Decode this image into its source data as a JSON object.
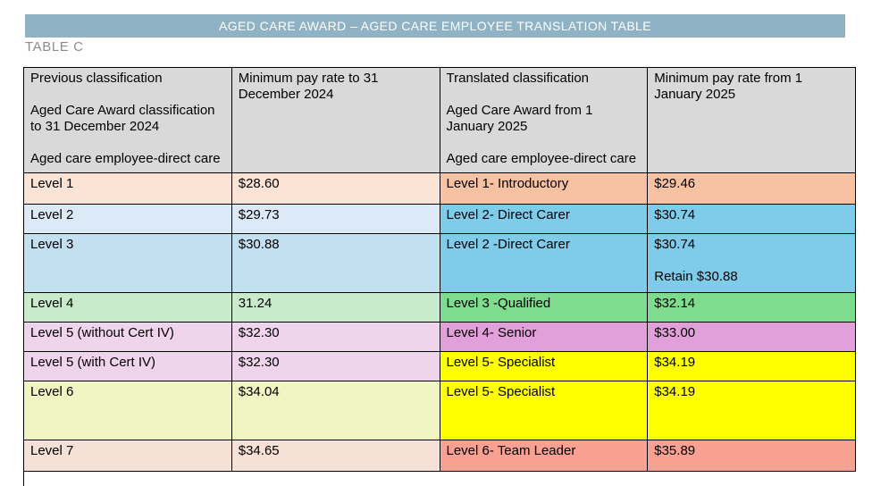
{
  "banner": {
    "title": "AGED CARE AWARD – AGED CARE EMPLOYEE TRANSLATION TABLE",
    "bg": "#8FB3C4",
    "text_color": "#FFFFFF"
  },
  "table_label": "TABLE C",
  "table_label_color": "#8C8C8C",
  "table": {
    "header": {
      "bg": "#D9D9D9",
      "height": 118,
      "columns": [
        {
          "lines": [
            "Previous classification",
            "",
            "Aged Care Award classification to 31 December 2024",
            "",
            "Aged care employee-direct care"
          ]
        },
        {
          "lines": [
            "Minimum pay rate to 31 December 2024"
          ]
        },
        {
          "lines": [
            "Translated classification",
            "",
            "Aged Care Award from 1 January 2025",
            "",
            "Aged care employee-direct care"
          ]
        },
        {
          "lines": [
            "Minimum pay rate from 1 January 2025"
          ]
        }
      ]
    },
    "rows": [
      {
        "height": 35,
        "left_bg": "#FBE3D6",
        "right_bg": "#F6C2A2",
        "cells": [
          "Level 1",
          "$28.60",
          "Level 1- Introductory",
          "$29.46"
        ]
      },
      {
        "height": 33,
        "left_bg": "#DCE9F6",
        "right_bg": "#7FCBEA",
        "cells": [
          "Level 2",
          "$29.73",
          "Level 2- Direct Carer",
          "$30.74"
        ]
      },
      {
        "height": 66,
        "left_bg": "#C3E0F0",
        "right_bg": "#7FCBEA",
        "cells": [
          "Level 3",
          "$30.88",
          "Level 2 -Direct Carer",
          "$30.74"
        ],
        "retain": "Retain $30.88"
      },
      {
        "height": 33,
        "left_bg": "#C9EBCB",
        "right_bg": "#7FDB8D",
        "cells": [
          "Level 4",
          "31.24",
          "Level 3 -Qualified",
          "$32.14"
        ]
      },
      {
        "height": 33,
        "left_bg": "#EFD4EC",
        "right_bg": "#E1A0DA",
        "cells": [
          "Level 5 (without Cert IV)",
          "$32.30",
          "Level 4- Senior",
          "$33.00"
        ]
      },
      {
        "height": 33,
        "left_bg": "#EFD4EC",
        "right_bg": "#FFFF00",
        "cells": [
          "Level 5 (with Cert IV)",
          "$32.30",
          "Level 5- Specialist",
          "$34.19"
        ]
      },
      {
        "height": 66,
        "left_bg": "#F0F5C2",
        "right_bg": "#FFFF00",
        "cells": [
          "Level 6",
          "$34.04",
          "Level 5- Specialist",
          "$34.19"
        ]
      },
      {
        "height": 35,
        "left_bg": "#F7E0D6",
        "right_bg": "#F8A091",
        "cells": [
          "Level 7",
          "$34.65",
          "Level 6- Team Leader",
          "$35.89"
        ]
      }
    ]
  }
}
